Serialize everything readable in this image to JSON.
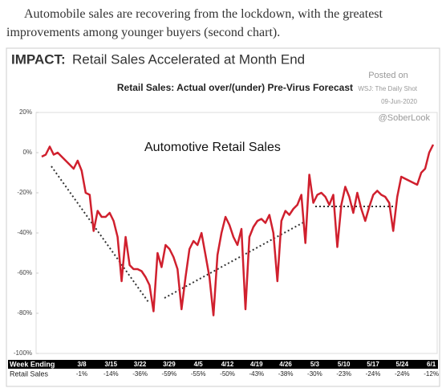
{
  "intro": "Automobile sales are recovering from the lockdown, with the greatest improvements among younger buyers (second chart).",
  "chart_data": {
    "type": "line",
    "title_label": "IMPACT:",
    "title": "Retail Sales Accelerated at Month End",
    "subtitle": "Retail Sales: Actual over/(under) Pre-Virus Forecast",
    "source": [
      "Posted on",
      "WSJ: The Daily Shot",
      "09-Jun-2020"
    ],
    "handle": "@SoberLook",
    "annotation": "Automotive Retail Sales",
    "color": "#d0202e",
    "ylim": [
      -100,
      20
    ],
    "yticks": [
      {
        "value": 20,
        "label": "20%"
      },
      {
        "value": 0,
        "label": "0%"
      },
      {
        "value": -20,
        "label": "-20%"
      },
      {
        "value": -40,
        "label": "-40%"
      },
      {
        "value": -60,
        "label": "-60%"
      },
      {
        "value": -80,
        "label": "-80%"
      },
      {
        "value": -100,
        "label": "-100%"
      }
    ],
    "values": [
      -2,
      -1,
      3,
      -1,
      0,
      -2,
      -4,
      -6,
      -8,
      -4,
      -9,
      -20,
      -21,
      -39,
      -29,
      -32,
      -32,
      -30,
      -34,
      -42,
      -64,
      -42,
      -56,
      -58,
      -58,
      -59,
      -62,
      -66,
      -79,
      -50,
      -57,
      -46,
      -48,
      -52,
      -58,
      -78,
      -62,
      -48,
      -44,
      -46,
      -40,
      -51,
      -62,
      -81,
      -51,
      -40,
      -32,
      -36,
      -42,
      -46,
      -38,
      -78,
      -42,
      -37,
      -34,
      -33,
      -35,
      -31,
      -40,
      -64,
      -34,
      -29,
      -31,
      -28,
      -26,
      -21,
      -45,
      -11,
      -25,
      -21,
      -20,
      -22,
      -26,
      -21,
      -47,
      -26,
      -17,
      -22,
      -30,
      -20,
      -28,
      -34,
      -27,
      -21,
      -19,
      -21,
      -22,
      -25,
      -39,
      -22,
      -12,
      -13,
      -14,
      -15,
      -16,
      -10,
      -8,
      0,
      4
    ],
    "table": {
      "row_labels": [
        "Week Ending",
        "Retail Sales"
      ],
      "weeks": [
        "3/8",
        "3/15",
        "3/22",
        "3/29",
        "4/5",
        "4/12",
        "4/19",
        "4/26",
        "5/3",
        "5/10",
        "5/17",
        "5/24",
        "6/1"
      ],
      "sales": [
        -1,
        -14,
        -36,
        -59,
        -55,
        -50,
        -43,
        -38,
        -30,
        -23,
        -24,
        -24,
        -12
      ],
      "sales_labels": [
        "-1%",
        "-14%",
        "-36%",
        "-59%",
        "-55%",
        "-50%",
        "-43%",
        "-38%",
        "-30%",
        "-23%",
        "-24%",
        "-24%",
        "-12%"
      ]
    }
  }
}
